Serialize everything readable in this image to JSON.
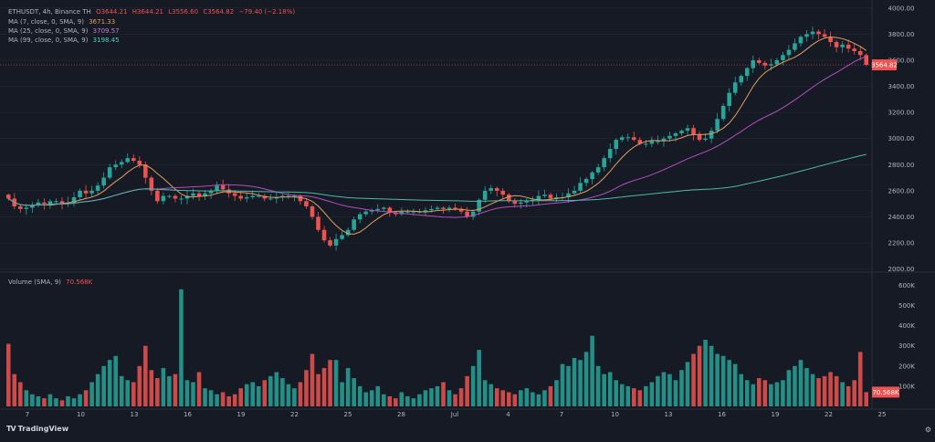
{
  "legend": {
    "symbol": "ETHUSDT, 4h, Binance TH",
    "ohlc": {
      "o": "O3644.21",
      "h": "H3644.21",
      "l": "L3556.60",
      "c": "C3564.82",
      "chg": "−79.40 (−2.18%)"
    },
    "ma7_label": "MA (7, close, 0, SMA, 9)",
    "ma7_value": "3671.33",
    "ma25_label": "MA (25, close, 0, SMA, 9)",
    "ma25_value": "3709.57",
    "ma99_label": "MA (99, close, 0, SMA, 9)",
    "ma99_value": "3198.45",
    "volume_label": "Volume (SMA, 9)",
    "volume_value": "70.568K"
  },
  "colors": {
    "background": "#161a25",
    "up": "#26a69a",
    "down": "#ef5350",
    "ma7": "#e0a060",
    "ma25": "#b04fc0",
    "ma99": "#4fb7a8",
    "text": "#b2b5be",
    "grid": "#232733"
  },
  "branding": {
    "logo_text": "TradingView",
    "logo_icon": "tradingview-logo-icon"
  },
  "chart_data": [
    {
      "type": "candlestick",
      "title": "ETHUSDT, 4h, Binance TH",
      "price_ticks": [
        "4000.00",
        "3800.00",
        "3600.00",
        "3400.00",
        "3200.00",
        "3000.00",
        "2800.00",
        "2600.00",
        "2400.00",
        "2200.00",
        "2000.00"
      ],
      "ylim": [
        1990,
        4020
      ],
      "last_price_label": "3564.82",
      "x_ticks": [
        "7",
        "10",
        "13",
        "16",
        "19",
        "22",
        "25",
        "28",
        "Jul",
        "4",
        "7",
        "10",
        "13",
        "16",
        "19",
        "22",
        "25"
      ],
      "series": [
        {
          "name": "MA (7, close, 0, SMA, 9)",
          "style": "line",
          "color": "#e0a060",
          "last_value": 3671.33
        },
        {
          "name": "MA (25, close, 0, SMA, 9)",
          "style": "line",
          "color": "#b04fc0",
          "last_value": 3709.57
        },
        {
          "name": "MA (99, close, 0, SMA, 9)",
          "style": "line",
          "color": "#4fb7a8",
          "last_value": 3198.45
        }
      ],
      "closes": [
        2540,
        2480,
        2460,
        2470,
        2490,
        2510,
        2500,
        2520,
        2520,
        2500,
        2510,
        2550,
        2600,
        2580,
        2600,
        2640,
        2700,
        2780,
        2800,
        2820,
        2850,
        2830,
        2800,
        2700,
        2600,
        2520,
        2560,
        2560,
        2540,
        2540,
        2560,
        2580,
        2560,
        2580,
        2600,
        2640,
        2610,
        2580,
        2560,
        2540,
        2550,
        2560,
        2560,
        2540,
        2540,
        2550,
        2560,
        2560,
        2560,
        2520,
        2480,
        2400,
        2300,
        2220,
        2180,
        2230,
        2260,
        2300,
        2380,
        2420,
        2440,
        2450,
        2460,
        2470,
        2430,
        2420,
        2440,
        2440,
        2440,
        2440,
        2450,
        2460,
        2470,
        2460,
        2470,
        2460,
        2440,
        2400,
        2440,
        2530,
        2600,
        2620,
        2600,
        2570,
        2520,
        2500,
        2510,
        2520,
        2530,
        2560,
        2570,
        2540,
        2550,
        2550,
        2580,
        2600,
        2660,
        2690,
        2740,
        2780,
        2850,
        2920,
        2990,
        3010,
        3010,
        2990,
        2960,
        2960,
        2980,
        2980,
        3000,
        3020,
        3040,
        3060,
        3080,
        3030,
        2990,
        3000,
        3060,
        3150,
        3250,
        3350,
        3430,
        3480,
        3540,
        3600,
        3580,
        3560,
        3570,
        3600,
        3640,
        3680,
        3730,
        3780,
        3800,
        3820,
        3800,
        3780,
        3740,
        3700,
        3720,
        3690,
        3670,
        3640,
        3564.82
      ]
    },
    {
      "type": "bar",
      "title": "Volume (SMA, 9)",
      "last_value_label": "70.568K",
      "volume_ticks": [
        "600K",
        "500K",
        "400K",
        "300K",
        "200K",
        "100K"
      ],
      "ylim": [
        0,
        620000
      ],
      "values": [
        310000,
        160000,
        120000,
        80000,
        60000,
        50000,
        40000,
        60000,
        40000,
        30000,
        50000,
        40000,
        60000,
        80000,
        120000,
        160000,
        200000,
        230000,
        250000,
        150000,
        130000,
        120000,
        200000,
        300000,
        180000,
        140000,
        190000,
        150000,
        160000,
        580000,
        130000,
        120000,
        170000,
        90000,
        80000,
        60000,
        70000,
        50000,
        60000,
        90000,
        110000,
        120000,
        100000,
        130000,
        150000,
        170000,
        140000,
        110000,
        90000,
        120000,
        180000,
        260000,
        160000,
        190000,
        230000,
        230000,
        120000,
        190000,
        140000,
        100000,
        70000,
        80000,
        100000,
        60000,
        50000,
        40000,
        70000,
        50000,
        40000,
        60000,
        80000,
        90000,
        100000,
        120000,
        80000,
        60000,
        90000,
        150000,
        200000,
        280000,
        130000,
        110000,
        90000,
        80000,
        70000,
        60000,
        80000,
        90000,
        70000,
        60000,
        80000,
        100000,
        130000,
        210000,
        200000,
        240000,
        230000,
        270000,
        350000,
        200000,
        160000,
        170000,
        130000,
        110000,
        100000,
        90000,
        80000,
        100000,
        120000,
        150000,
        170000,
        160000,
        130000,
        180000,
        220000,
        260000,
        300000,
        330000,
        300000,
        260000,
        250000,
        230000,
        210000,
        160000,
        130000,
        110000,
        140000,
        130000,
        110000,
        120000,
        130000,
        180000,
        200000,
        230000,
        190000,
        160000,
        140000,
        150000,
        170000,
        150000,
        120000,
        100000,
        130000,
        270000,
        70568
      ]
    }
  ]
}
